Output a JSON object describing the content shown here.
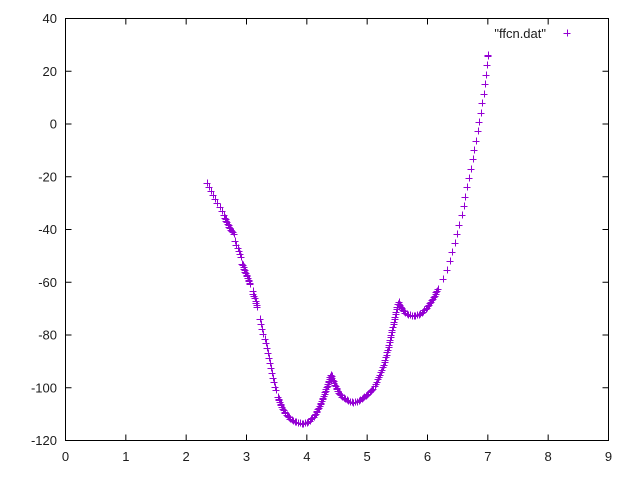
{
  "figure": {
    "background": "#ffffff",
    "border_color": "#000000",
    "text_color": "#1c1c1c"
  },
  "chart_data": {
    "type": "scatter",
    "title": "",
    "xlabel": "",
    "ylabel": "",
    "xlim": [
      0,
      9
    ],
    "ylim": [
      -120,
      40
    ],
    "xticks": [
      0,
      1,
      2,
      3,
      4,
      5,
      6,
      7,
      8,
      9
    ],
    "yticks": [
      40,
      20,
      0,
      -20,
      -40,
      -60,
      -80,
      -100,
      -120
    ],
    "grid": false,
    "tick_style": "inward-mirrored",
    "legend": {
      "label": "\"ffcn.dat\"",
      "position": "top-right-inside"
    },
    "series": [
      {
        "name": "ffcn.dat",
        "marker": "+",
        "color": "#9400d3",
        "marker_size_px": 7,
        "runs": [
          {
            "spacing_px": 4.5,
            "points": [
              [
                2.35,
                -22.5
              ],
              [
                2.41,
                -25.3
              ],
              [
                2.47,
                -28.0
              ],
              [
                2.53,
                -30.6
              ],
              [
                2.59,
                -33.2
              ],
              [
                2.62,
                -34.5
              ]
            ]
          },
          {
            "spacing_px": 1.7,
            "points": [
              [
                2.64,
                -35.5
              ],
              [
                2.7,
                -38.2
              ],
              [
                2.75,
                -40.2
              ],
              [
                2.79,
                -41.6
              ]
            ]
          },
          {
            "spacing_px": 3.5,
            "points": [
              [
                2.81,
                -44.5
              ],
              [
                2.86,
                -47.5
              ],
              [
                2.91,
                -50.5
              ]
            ]
          },
          {
            "spacing_px": 1.7,
            "points": [
              [
                2.93,
                -53.0
              ],
              [
                2.99,
                -56.5
              ],
              [
                3.06,
                -60.5
              ]
            ]
          },
          {
            "spacing_px": 2.4,
            "points": [
              [
                3.1,
                -63.5
              ],
              [
                3.14,
                -66.0
              ],
              [
                3.18,
                -69.3
              ]
            ]
          },
          {
            "spacing_px": 5.0,
            "points": [
              [
                3.22,
                -74.0
              ],
              [
                3.28,
                -79.5
              ],
              [
                3.34,
                -85.5
              ],
              [
                3.4,
                -91.5
              ],
              [
                3.45,
                -96.5
              ],
              [
                3.49,
                -101.0
              ]
            ]
          },
          {
            "spacing_px": 1.8,
            "points": [
              [
                3.52,
                -103.5
              ],
              [
                3.58,
                -106.8
              ],
              [
                3.65,
                -109.8
              ],
              [
                3.73,
                -111.8
              ],
              [
                3.82,
                -113.0
              ],
              [
                3.91,
                -113.6
              ],
              [
                3.99,
                -113.3
              ],
              [
                4.07,
                -112.1
              ],
              [
                4.15,
                -109.7
              ],
              [
                4.23,
                -106.3
              ],
              [
                4.31,
                -101.5
              ],
              [
                4.37,
                -97.4
              ],
              [
                4.4,
                -95.0
              ]
            ]
          },
          {
            "spacing_px": 1.8,
            "points": [
              [
                4.4,
                -95.0
              ],
              [
                4.46,
                -98.3
              ],
              [
                4.52,
                -101.2
              ],
              [
                4.58,
                -103.2
              ],
              [
                4.64,
                -104.5
              ],
              [
                4.71,
                -105.3
              ],
              [
                4.78,
                -105.6
              ],
              [
                4.86,
                -105.1
              ],
              [
                4.94,
                -103.9
              ],
              [
                5.02,
                -102.2
              ],
              [
                5.1,
                -100.3
              ]
            ]
          },
          {
            "spacing_px": 2.6,
            "points": [
              [
                5.1,
                -100.3
              ],
              [
                5.18,
                -97.0
              ],
              [
                5.26,
                -92.5
              ],
              [
                5.33,
                -87.0
              ],
              [
                5.4,
                -80.0
              ],
              [
                5.46,
                -73.5
              ],
              [
                5.52,
                -67.5
              ]
            ]
          },
          {
            "spacing_px": 1.8,
            "points": [
              [
                5.52,
                -67.5
              ],
              [
                5.58,
                -70.0
              ],
              [
                5.64,
                -71.6
              ],
              [
                5.71,
                -72.5
              ],
              [
                5.78,
                -72.8
              ],
              [
                5.86,
                -72.2
              ],
              [
                5.94,
                -70.8
              ],
              [
                6.02,
                -68.6
              ],
              [
                6.1,
                -65.8
              ],
              [
                6.18,
                -62.5
              ]
            ]
          },
          {
            "spacing_px": 9.5,
            "points": [
              [
                6.26,
                -58.8
              ],
              [
                6.34,
                -54.0
              ],
              [
                6.42,
                -48.0
              ],
              [
                6.5,
                -41.0
              ],
              [
                6.58,
                -33.0
              ],
              [
                6.66,
                -24.0
              ],
              [
                6.74,
                -14.5
              ],
              [
                6.82,
                -4.5
              ],
              [
                6.9,
                6.5
              ],
              [
                6.96,
                17.0
              ],
              [
                7.0,
                26.3
              ]
            ]
          }
        ]
      }
    ]
  }
}
